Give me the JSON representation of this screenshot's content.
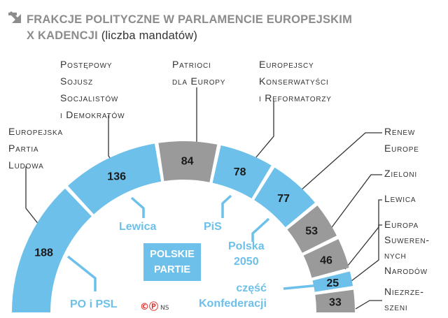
{
  "header": {
    "title_bold": "FRAKCJE POLITYCZNE W PARLAMENCIE EUROPEJSKIM",
    "title_bold2": "X KADENCJI",
    "title_sub": "(liczba mandatów)",
    "icon": "arrow-down-right-icon"
  },
  "colors": {
    "blue": "#6cc0ea",
    "gray": "#9a9a9a",
    "text": "#333333",
    "title": "#8c8c8c"
  },
  "chart_data": {
    "type": "pie",
    "subtype": "semicircle-parliament",
    "title": "FRAKCJE POLITYCZNE W PARLAMENCIE EUROPEJSKIM X KADENCJI (liczba mandatów)",
    "categories": [
      "Europejska Partia Ludowa",
      "Postępowy Sojusz Socjalistów i Demokratów",
      "Patrioci dla Europy",
      "Europejscy Konserwatyści i Reformatorzy",
      "Renew Europe",
      "Zieloni",
      "Lewica",
      "Europa Suwerennych Narodów",
      "Niezrzeszeni"
    ],
    "values": [
      188,
      136,
      84,
      78,
      77,
      53,
      46,
      25,
      33
    ],
    "has_polish_parties": [
      true,
      true,
      false,
      true,
      true,
      false,
      false,
      true,
      false
    ]
  },
  "groups": [
    {
      "lines": [
        "Europejska",
        "Partia",
        "Ludowa"
      ]
    },
    {
      "lines": [
        "Postępowy",
        "Sojusz",
        "Socjalistów",
        "i Demokratów"
      ]
    },
    {
      "lines": [
        "Patrioci",
        "dla Europy"
      ]
    },
    {
      "lines": [
        "Europejscy",
        "Konserwatyści",
        "i Reformatorzy"
      ]
    },
    {
      "lines": [
        "Renew",
        "Europe"
      ]
    },
    {
      "lines": [
        "Zieloni"
      ]
    },
    {
      "lines": [
        "Lewica"
      ]
    },
    {
      "lines": [
        "Europa",
        "Suweren-",
        "nych",
        "Narodów"
      ]
    },
    {
      "lines": [
        "Niezrze-",
        "szeni"
      ]
    }
  ],
  "polish": {
    "box": [
      "POLSKIE",
      "PARTIE"
    ],
    "po_psl": "PO i PSL",
    "lewica": "Lewica",
    "pis": "PiS",
    "polska2050": [
      "Polska",
      "2050"
    ],
    "konfederacja": [
      "część",
      "Konfederacji"
    ]
  },
  "credit": {
    "symbols": "©Ⓟ",
    "author": "NS"
  }
}
